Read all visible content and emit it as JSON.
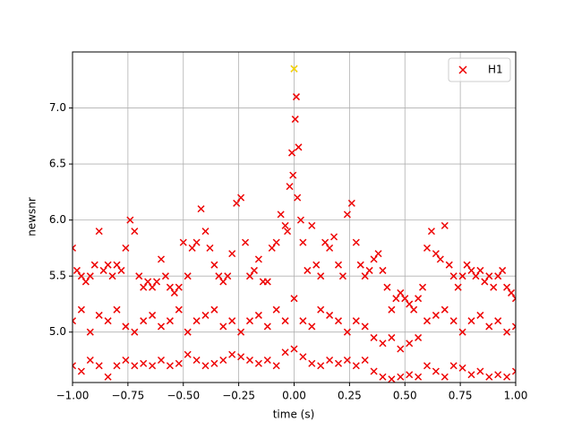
{
  "chart_data": {
    "type": "scatter",
    "xlabel": "time (s)",
    "ylabel": "newsnr",
    "xlim": [
      -1,
      1
    ],
    "ylim": [
      4.55,
      7.5
    ],
    "xticks": [
      {
        "value": -1,
        "label": "−1.00"
      },
      {
        "value": -0.75,
        "label": "−0.75"
      },
      {
        "value": -0.5,
        "label": "−0.50"
      },
      {
        "value": -0.25,
        "label": "−0.25"
      },
      {
        "value": 0,
        "label": "0.00"
      },
      {
        "value": 0.25,
        "label": "0.25"
      },
      {
        "value": 0.5,
        "label": "0.50"
      },
      {
        "value": 0.75,
        "label": "0.75"
      },
      {
        "value": 1,
        "label": "1.00"
      }
    ],
    "yticks": [
      {
        "value": 5,
        "label": "5.0"
      },
      {
        "value": 5.5,
        "label": "5.5"
      },
      {
        "value": 6,
        "label": "6.0"
      },
      {
        "value": 6.5,
        "label": "6.5"
      },
      {
        "value": 7,
        "label": "7.0"
      }
    ],
    "grid": true,
    "legend": "upper right",
    "series": [
      {
        "name": "H1",
        "color": "#ee0000",
        "x": [
          -1,
          -0.98,
          -0.96,
          -0.94,
          -0.92,
          -0.9,
          -0.88,
          -0.86,
          -0.84,
          -0.82,
          -0.8,
          -0.78,
          -0.76,
          -0.74,
          -0.72,
          -0.7,
          -0.68,
          -0.66,
          -0.64,
          -0.62,
          -0.6,
          -0.58,
          -0.56,
          -0.54,
          -0.52,
          -0.5,
          -0.48,
          -0.46,
          -0.44,
          -0.42,
          -0.4,
          -0.38,
          -0.36,
          -0.34,
          -0.32,
          -0.3,
          -0.28,
          -0.26,
          -0.24,
          -0.22,
          -0.2,
          -0.18,
          -0.16,
          -0.14,
          -0.12,
          -0.1,
          -0.08,
          -0.06,
          -0.04,
          -0.02,
          0,
          0.02,
          0.04,
          0.06,
          0.08,
          0.1,
          0.12,
          0.14,
          0.16,
          0.18,
          0.2,
          0.22,
          0.24,
          0.26,
          0.28,
          0.3,
          0.32,
          0.34,
          0.36,
          0.38,
          0.4,
          0.42,
          0.44,
          0.46,
          0.48,
          0.5,
          0.52,
          0.54,
          0.56,
          0.58,
          0.6,
          0.62,
          0.64,
          0.66,
          0.68,
          0.7,
          0.72,
          0.74,
          0.76,
          0.78,
          0.8,
          0.82,
          0.84,
          0.86,
          0.88,
          0.9,
          0.92,
          0.94,
          0.96,
          0.98,
          1,
          -1,
          -0.96,
          -0.92,
          -0.88,
          -0.84,
          -0.8,
          -0.76,
          -0.72,
          -0.68,
          -0.64,
          -0.6,
          -0.56,
          -0.52,
          -0.48,
          -0.44,
          -0.4,
          -0.36,
          -0.32,
          -0.28,
          -0.24,
          -0.2,
          -0.16,
          -0.12,
          -0.08,
          -0.04,
          0,
          0.04,
          0.08,
          0.12,
          0.16,
          0.2,
          0.24,
          0.28,
          0.32,
          0.36,
          0.4,
          0.44,
          0.48,
          0.52,
          0.56,
          0.6,
          0.64,
          0.68,
          0.72,
          0.76,
          0.8,
          0.84,
          0.88,
          0.92,
          0.96,
          1,
          -1,
          -0.96,
          -0.92,
          -0.88,
          -0.84,
          -0.8,
          -0.76,
          -0.72,
          -0.68,
          -0.64,
          -0.6,
          -0.56,
          -0.52,
          -0.48,
          -0.44,
          -0.4,
          -0.36,
          -0.32,
          -0.28,
          -0.24,
          -0.2,
          -0.16,
          -0.12,
          -0.08,
          -0.04,
          0,
          0.04,
          0.08,
          0.12,
          0.16,
          0.2,
          0.24,
          0.28,
          0.32,
          0.36,
          0.4,
          0.44,
          0.48,
          0.52,
          0.56,
          0.6,
          0.64,
          0.68,
          0.72,
          0.76,
          0.8,
          0.84,
          0.88,
          0.92,
          0.96,
          1,
          -0.01,
          0.01,
          0.005,
          0.015,
          -0.005,
          0.03,
          -0.03
        ],
        "y": [
          5.75,
          5.55,
          5.5,
          5.45,
          5.5,
          5.6,
          5.9,
          5.55,
          5.6,
          5.5,
          5.6,
          5.55,
          5.75,
          6.0,
          5.9,
          5.5,
          5.4,
          5.45,
          5.4,
          5.45,
          5.65,
          5.5,
          5.4,
          5.35,
          5.4,
          5.8,
          5.5,
          5.75,
          5.8,
          6.1,
          5.9,
          5.75,
          5.6,
          5.5,
          5.45,
          5.5,
          5.7,
          6.15,
          6.2,
          5.8,
          5.5,
          5.55,
          5.65,
          5.45,
          5.45,
          5.75,
          5.8,
          6.05,
          5.95,
          6.3,
          7.35,
          6.65,
          5.8,
          5.55,
          5.95,
          5.6,
          5.5,
          5.8,
          5.75,
          5.85,
          5.6,
          5.5,
          6.05,
          6.15,
          5.8,
          5.6,
          5.5,
          5.55,
          5.65,
          5.7,
          5.55,
          5.4,
          5.2,
          5.3,
          5.35,
          5.3,
          5.25,
          5.2,
          5.3,
          5.4,
          5.75,
          5.9,
          5.7,
          5.65,
          5.95,
          5.6,
          5.5,
          5.4,
          5.5,
          5.6,
          5.55,
          5.5,
          5.55,
          5.45,
          5.5,
          5.4,
          5.5,
          5.55,
          5.4,
          5.35,
          5.3,
          5.1,
          5.2,
          5.0,
          5.15,
          5.1,
          5.2,
          5.05,
          5.0,
          5.1,
          5.15,
          5.05,
          5.1,
          5.2,
          5.0,
          5.1,
          5.15,
          5.2,
          5.05,
          5.1,
          5.0,
          5.1,
          5.15,
          5.05,
          5.2,
          5.1,
          5.3,
          5.1,
          5.05,
          5.2,
          5.15,
          5.1,
          5.0,
          5.1,
          5.05,
          4.95,
          4.9,
          4.95,
          4.85,
          4.9,
          4.95,
          5.1,
          5.15,
          5.2,
          5.1,
          5.0,
          5.1,
          5.15,
          5.05,
          5.1,
          5.0,
          5.05,
          4.7,
          4.65,
          4.75,
          4.7,
          4.6,
          4.7,
          4.75,
          4.7,
          4.72,
          4.7,
          4.75,
          4.7,
          4.72,
          4.8,
          4.75,
          4.7,
          4.72,
          4.75,
          4.8,
          4.78,
          4.75,
          4.72,
          4.75,
          4.7,
          4.82,
          4.85,
          4.78,
          4.72,
          4.7,
          4.75,
          4.72,
          4.75,
          4.7,
          4.75,
          4.65,
          4.6,
          4.58,
          4.6,
          4.62,
          4.6,
          4.7,
          4.65,
          4.6,
          4.7,
          4.68,
          4.62,
          4.65,
          4.6,
          4.62,
          4.6,
          4.65,
          6.6,
          7.1,
          6.9,
          6.2,
          6.4,
          6.0,
          5.9
        ]
      }
    ],
    "highlight": {
      "x": 0,
      "y": 7.35,
      "color": "#f0e000"
    }
  }
}
